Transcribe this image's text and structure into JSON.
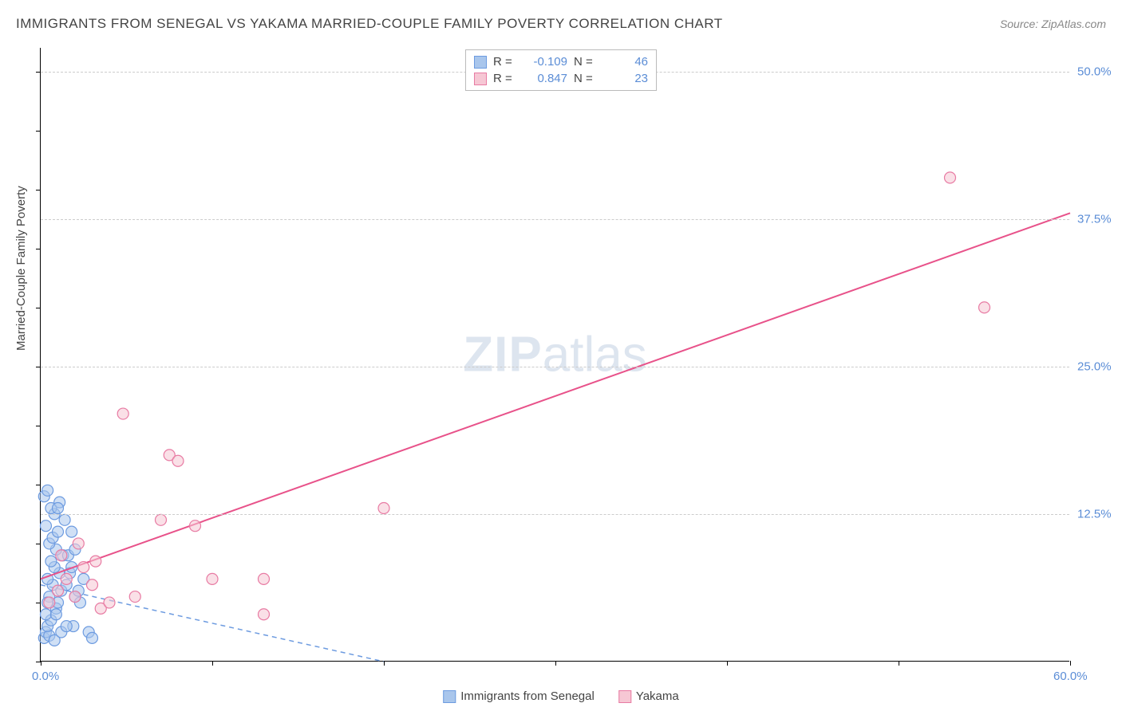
{
  "title": "IMMIGRANTS FROM SENEGAL VS YAKAMA MARRIED-COUPLE FAMILY POVERTY CORRELATION CHART",
  "source": "Source: ZipAtlas.com",
  "y_axis_title": "Married-Couple Family Poverty",
  "watermark_bold": "ZIP",
  "watermark_rest": "atlas",
  "chart": {
    "type": "scatter",
    "xlim": [
      0,
      60
    ],
    "ylim": [
      0,
      52
    ],
    "x_origin_label": "0.0%",
    "x_max_label": "60.0%",
    "y_ticks": [
      {
        "value": 12.5,
        "label": "12.5%"
      },
      {
        "value": 25.0,
        "label": "25.0%"
      },
      {
        "value": 37.5,
        "label": "37.5%"
      },
      {
        "value": 50.0,
        "label": "50.0%"
      }
    ],
    "x_tick_values": [
      0,
      10,
      20,
      30,
      40,
      50,
      60
    ],
    "y_minor_tick_values": [
      0,
      5,
      10,
      15,
      20,
      25,
      30,
      35,
      40,
      45,
      50
    ],
    "background_color": "#ffffff",
    "grid_color": "#cccccc",
    "marker_radius": 7,
    "series": [
      {
        "name": "Immigrants from Senegal",
        "fill_color": "#a9c6ec",
        "stroke_color": "#6d9be0",
        "fill_opacity": 0.55,
        "R": "-0.109",
        "N": "46",
        "regression": {
          "x1": 0,
          "y1": 6.5,
          "x2": 20,
          "y2": 0.0,
          "dash": "6,5",
          "color": "#6d9be0",
          "width": 1.5
        },
        "points": [
          [
            0.2,
            2.0
          ],
          [
            0.3,
            2.5
          ],
          [
            0.5,
            2.2
          ],
          [
            0.8,
            1.8
          ],
          [
            0.4,
            3.0
          ],
          [
            0.6,
            3.5
          ],
          [
            0.3,
            4.0
          ],
          [
            0.9,
            4.5
          ],
          [
            1.0,
            5.0
          ],
          [
            0.5,
            5.5
          ],
          [
            1.2,
            6.0
          ],
          [
            0.7,
            6.5
          ],
          [
            0.4,
            7.0
          ],
          [
            1.1,
            7.5
          ],
          [
            0.8,
            8.0
          ],
          [
            0.6,
            8.5
          ],
          [
            1.3,
            9.0
          ],
          [
            0.9,
            9.5
          ],
          [
            0.5,
            10.0
          ],
          [
            0.7,
            10.5
          ],
          [
            1.0,
            11.0
          ],
          [
            0.3,
            11.5
          ],
          [
            1.4,
            12.0
          ],
          [
            0.8,
            12.5
          ],
          [
            0.6,
            13.0
          ],
          [
            1.1,
            13.5
          ],
          [
            0.4,
            5.0
          ],
          [
            0.9,
            4.0
          ],
          [
            1.5,
            6.5
          ],
          [
            1.7,
            7.5
          ],
          [
            2.0,
            5.5
          ],
          [
            1.8,
            8.0
          ],
          [
            2.2,
            6.0
          ],
          [
            1.6,
            9.0
          ],
          [
            2.5,
            7.0
          ],
          [
            2.3,
            5.0
          ],
          [
            1.9,
            3.0
          ],
          [
            2.8,
            2.5
          ],
          [
            3.0,
            2.0
          ],
          [
            1.2,
            2.5
          ],
          [
            1.5,
            3.0
          ],
          [
            2.0,
            9.5
          ],
          [
            1.8,
            11.0
          ],
          [
            0.2,
            14.0
          ],
          [
            0.4,
            14.5
          ],
          [
            1.0,
            13.0
          ]
        ]
      },
      {
        "name": "Yakama",
        "fill_color": "#f6c7d4",
        "stroke_color": "#e87ba3",
        "fill_opacity": 0.55,
        "R": "0.847",
        "N": "23",
        "regression": {
          "x1": 0,
          "y1": 7.0,
          "x2": 60,
          "y2": 38.0,
          "dash": "none",
          "color": "#e8528a",
          "width": 2
        },
        "points": [
          [
            0.5,
            5.0
          ],
          [
            1.0,
            6.0
          ],
          [
            1.5,
            7.0
          ],
          [
            2.0,
            5.5
          ],
          [
            2.5,
            8.0
          ],
          [
            3.0,
            6.5
          ],
          [
            3.5,
            4.5
          ],
          [
            4.0,
            5.0
          ],
          [
            5.5,
            5.5
          ],
          [
            7.0,
            12.0
          ],
          [
            9.0,
            11.5
          ],
          [
            4.8,
            21.0
          ],
          [
            7.5,
            17.5
          ],
          [
            8.0,
            17.0
          ],
          [
            10.0,
            7.0
          ],
          [
            13.0,
            7.0
          ],
          [
            13.0,
            4.0
          ],
          [
            20.0,
            13.0
          ],
          [
            53.0,
            41.0
          ],
          [
            55.0,
            30.0
          ],
          [
            1.2,
            9.0
          ],
          [
            2.2,
            10.0
          ],
          [
            3.2,
            8.5
          ]
        ]
      }
    ]
  },
  "legend_top": {
    "label_R": "R =",
    "label_N": "N ="
  },
  "colors": {
    "axis_text": "#5b8dd6",
    "title_text": "#444444",
    "source_text": "#888888"
  }
}
